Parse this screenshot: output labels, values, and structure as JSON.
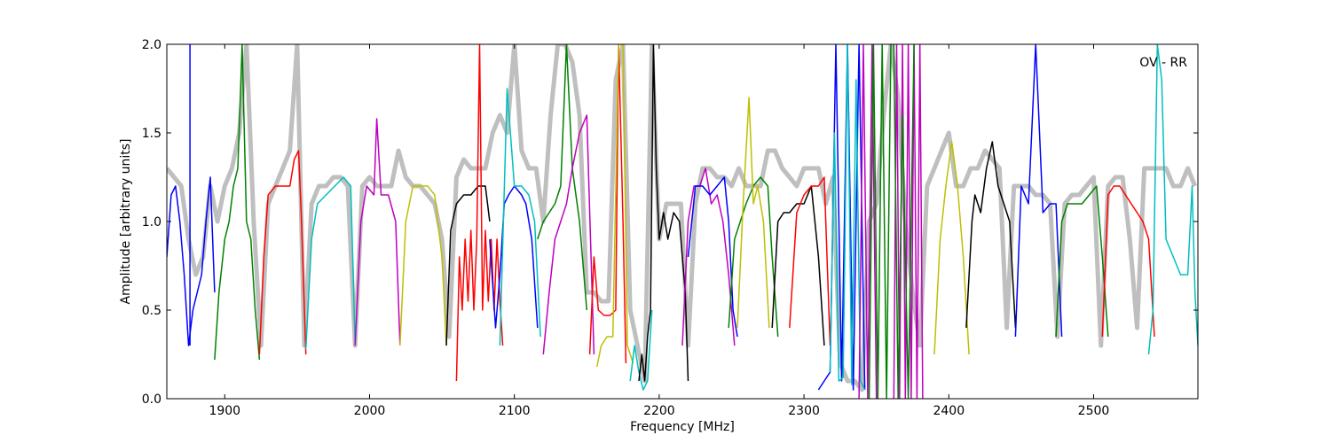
{
  "chart_data": {
    "type": "line",
    "annotation": "OV - RR",
    "xlabel": "Frequency [MHz]",
    "ylabel": "Amplitude [arbitrary units]",
    "xlim": [
      1860,
      2572
    ],
    "ylim": [
      0,
      2.0
    ],
    "xticks": [
      1900,
      2000,
      2100,
      2200,
      2300,
      2400,
      2500
    ],
    "yticks": [
      0.0,
      0.5,
      1.0,
      1.5,
      2.0
    ],
    "xtick_labels": [
      "1900",
      "2000",
      "2100",
      "2200",
      "2300",
      "2400",
      "2500"
    ],
    "ytick_labels": [
      "0.0",
      "0.5",
      "1.0",
      "1.5",
      "2.0"
    ],
    "grid": false,
    "reference_color": "#bfbfbf",
    "reference": {
      "x": [
        1860,
        1865,
        1870,
        1875,
        1880,
        1885,
        1890,
        1895,
        1900,
        1905,
        1910,
        1915,
        1920,
        1925,
        1930,
        1935,
        1940,
        1945,
        1950,
        1955,
        1960,
        1965,
        1970,
        1975,
        1980,
        1985,
        1990,
        1995,
        2000,
        2005,
        2010,
        2015,
        2020,
        2025,
        2030,
        2035,
        2040,
        2045,
        2050,
        2055,
        2060,
        2065,
        2070,
        2075,
        2080,
        2085,
        2090,
        2095,
        2100,
        2105,
        2110,
        2115,
        2120,
        2125,
        2130,
        2135,
        2140,
        2145,
        2150,
        2155,
        2160,
        2165,
        2170,
        2175,
        2180,
        2185,
        2190,
        2195,
        2200,
        2205,
        2210,
        2215,
        2220,
        2225,
        2230,
        2235,
        2240,
        2245,
        2250,
        2255,
        2260,
        2265,
        2270,
        2275,
        2280,
        2285,
        2290,
        2295,
        2300,
        2305,
        2310,
        2315,
        2320,
        2325,
        2330,
        2335,
        2340,
        2345,
        2350,
        2355,
        2360,
        2365,
        2370,
        2375,
        2380,
        2385,
        2390,
        2395,
        2400,
        2405,
        2410,
        2415,
        2420,
        2425,
        2430,
        2435,
        2440,
        2445,
        2450,
        2455,
        2460,
        2465,
        2470,
        2475,
        2480,
        2485,
        2490,
        2495,
        2500,
        2505,
        2510,
        2515,
        2520,
        2525,
        2530,
        2535,
        2540,
        2545,
        2550,
        2555,
        2560,
        2565,
        2570
      ],
      "y": [
        1.3,
        1.25,
        1.2,
        0.9,
        0.7,
        0.8,
        1.2,
        1.0,
        1.2,
        1.3,
        1.5,
        2.0,
        1.0,
        0.3,
        1.1,
        1.2,
        1.3,
        1.4,
        2.0,
        0.3,
        1.1,
        1.2,
        1.2,
        1.25,
        1.25,
        1.2,
        0.3,
        1.2,
        1.25,
        1.2,
        1.2,
        1.2,
        1.4,
        1.25,
        1.2,
        1.2,
        1.15,
        1.1,
        0.9,
        0.35,
        1.25,
        1.35,
        1.3,
        1.3,
        1.3,
        1.5,
        1.6,
        1.5,
        2.0,
        1.4,
        1.3,
        1.3,
        1.0,
        1.6,
        2.0,
        2.0,
        1.9,
        1.6,
        0.6,
        0.6,
        0.55,
        0.55,
        1.8,
        2.0,
        0.5,
        0.3,
        0.1,
        2.0,
        0.9,
        1.1,
        1.1,
        1.1,
        0.3,
        1.1,
        1.3,
        1.3,
        1.25,
        1.25,
        1.2,
        1.3,
        1.2,
        1.2,
        1.2,
        1.4,
        1.4,
        1.3,
        1.25,
        1.2,
        1.3,
        1.3,
        1.3,
        1.1,
        1.25,
        0.2,
        0.1,
        0.1,
        0.05,
        1.0,
        1.1,
        1.6,
        2.0,
        1.7,
        1.0,
        0.6,
        0.3,
        1.2,
        1.3,
        1.4,
        1.5,
        1.2,
        1.2,
        1.3,
        1.3,
        1.4,
        1.35,
        1.3,
        0.4,
        1.2,
        1.2,
        1.2,
        1.15,
        1.15,
        1.1,
        0.35,
        1.1,
        1.15,
        1.15,
        1.2,
        1.25,
        0.3,
        1.2,
        1.25,
        1.25,
        0.9,
        0.4,
        1.3,
        1.3,
        1.3,
        1.3,
        1.2,
        1.2,
        1.3,
        1.2
      ]
    },
    "series": [
      {
        "color": "#0000ff",
        "x": [
          1860,
          1863,
          1866,
          1869,
          1872,
          1875,
          1878,
          1881,
          1884,
          1887,
          1890,
          1893
        ],
        "y": [
          0.8,
          1.15,
          1.2,
          1.0,
          0.7,
          0.3,
          0.5,
          0.6,
          0.7,
          1.0,
          1.25,
          0.6
        ]
      },
      {
        "color": "#0000ff",
        "x": [
          1876,
          1876,
          1876
        ],
        "y": [
          0.3,
          2.0,
          0.3
        ]
      },
      {
        "color": "#008000",
        "x": [
          1893,
          1896,
          1900,
          1903,
          1906,
          1909,
          1912,
          1915,
          1918,
          1921,
          1924
        ],
        "y": [
          0.22,
          0.6,
          0.9,
          1.0,
          1.2,
          1.3,
          2.0,
          1.0,
          0.9,
          0.5,
          0.22
        ]
      },
      {
        "color": "#ff0000",
        "x": [
          1924,
          1927,
          1930,
          1935,
          1940,
          1945,
          1948,
          1951,
          1953,
          1956
        ],
        "y": [
          0.25,
          0.8,
          1.15,
          1.2,
          1.2,
          1.2,
          1.35,
          1.4,
          1.0,
          0.25
        ]
      },
      {
        "color": "#00bfbf",
        "x": [
          1956,
          1960,
          1964,
          1970,
          1976,
          1982,
          1987,
          1990
        ],
        "y": [
          0.28,
          0.9,
          1.1,
          1.15,
          1.2,
          1.25,
          1.2,
          0.3
        ]
      },
      {
        "color": "#bf00bf",
        "x": [
          1990,
          1994,
          1998,
          2003,
          2005,
          2008,
          2013,
          2018,
          2021
        ],
        "y": [
          0.3,
          1.0,
          1.2,
          1.15,
          1.58,
          1.15,
          1.15,
          1.0,
          0.3
        ]
      },
      {
        "color": "#bfbf00",
        "x": [
          2021,
          2025,
          2030,
          2035,
          2040,
          2045,
          2050,
          2053
        ],
        "y": [
          0.3,
          1.0,
          1.2,
          1.2,
          1.2,
          1.15,
          0.8,
          0.3
        ]
      },
      {
        "color": "#000000",
        "x": [
          2053,
          2056,
          2060,
          2065,
          2070,
          2075,
          2080,
          2083
        ],
        "y": [
          0.3,
          0.95,
          1.1,
          1.15,
          1.15,
          1.2,
          1.2,
          1.0
        ]
      },
      {
        "color": "#ff0000",
        "x": [
          2060,
          2062,
          2064,
          2066,
          2068,
          2070,
          2072,
          2074,
          2076,
          2078,
          2080,
          2082,
          2084,
          2086,
          2088,
          2090,
          2092
        ],
        "y": [
          0.1,
          0.8,
          0.5,
          0.9,
          0.55,
          0.95,
          0.5,
          0.9,
          2.0,
          0.5,
          0.95,
          0.55,
          0.9,
          0.5,
          0.9,
          0.55,
          0.3
        ]
      },
      {
        "color": "#0000ff",
        "x": [
          2083,
          2087,
          2090,
          2093,
          2096,
          2100,
          2105,
          2108,
          2112,
          2116
        ],
        "y": [
          0.9,
          0.4,
          0.7,
          1.1,
          1.15,
          1.2,
          1.15,
          1.1,
          0.9,
          0.4
        ]
      },
      {
        "color": "#00bfbf",
        "x": [
          2090,
          2095,
          2100,
          2105,
          2110,
          2114,
          2118
        ],
        "y": [
          0.3,
          1.75,
          1.2,
          1.2,
          1.15,
          1.0,
          0.35
        ]
      },
      {
        "color": "#008000",
        "x": [
          2116,
          2120,
          2124,
          2128,
          2132,
          2136,
          2140,
          2145,
          2150
        ],
        "y": [
          0.9,
          1.0,
          1.05,
          1.1,
          1.2,
          2.0,
          1.3,
          1.0,
          0.5
        ]
      },
      {
        "color": "#bf00bf",
        "x": [
          2120,
          2124,
          2128,
          2132,
          2136,
          2140,
          2145,
          2150,
          2155
        ],
        "y": [
          0.25,
          0.6,
          0.9,
          1.0,
          1.1,
          1.3,
          1.5,
          1.6,
          0.25
        ]
      },
      {
        "color": "#ff0000",
        "x": [
          2152,
          2155,
          2158,
          2162,
          2166,
          2170,
          2172,
          2175,
          2177
        ],
        "y": [
          0.25,
          0.8,
          0.5,
          0.47,
          0.47,
          0.5,
          2.0,
          1.0,
          0.2
        ]
      },
      {
        "color": "#bfbf00",
        "x": [
          2157,
          2160,
          2164,
          2168,
          2172,
          2175,
          2178,
          2182
        ],
        "y": [
          0.18,
          0.3,
          0.35,
          0.35,
          2.0,
          2.0,
          0.3,
          0.2
        ]
      },
      {
        "color": "#00bfbf",
        "x": [
          2180,
          2183,
          2186,
          2189,
          2192,
          2195
        ],
        "y": [
          0.1,
          0.3,
          0.15,
          0.05,
          0.1,
          0.5
        ]
      },
      {
        "color": "#000000",
        "x": [
          2186,
          2188,
          2190,
          2192,
          2194,
          2196,
          2198,
          2200,
          2203,
          2206,
          2210,
          2214,
          2218,
          2220
        ],
        "y": [
          0.1,
          0.25,
          0.1,
          0.35,
          0.5,
          2.0,
          1.3,
          0.9,
          1.05,
          0.9,
          1.05,
          1.0,
          0.6,
          0.1
        ]
      },
      {
        "color": "#bf00bf",
        "x": [
          2216,
          2220,
          2224,
          2228,
          2232,
          2236,
          2240,
          2244,
          2248,
          2252
        ],
        "y": [
          0.3,
          1.0,
          1.2,
          1.2,
          1.3,
          1.1,
          1.15,
          1.0,
          0.7,
          0.3
        ]
      },
      {
        "color": "#0000ff",
        "x": [
          2220,
          2225,
          2230,
          2235,
          2240,
          2245,
          2248,
          2251,
          2254
        ],
        "y": [
          0.8,
          1.2,
          1.2,
          1.15,
          1.2,
          1.25,
          1.0,
          0.5,
          0.35
        ]
      },
      {
        "color": "#008000",
        "x": [
          2248,
          2252,
          2256,
          2260,
          2265,
          2270,
          2275,
          2278,
          2282
        ],
        "y": [
          0.4,
          0.9,
          1.0,
          1.1,
          1.2,
          1.25,
          1.2,
          0.8,
          0.35
        ]
      },
      {
        "color": "#bfbf00",
        "x": [
          2254,
          2258,
          2262,
          2265,
          2268,
          2272,
          2276
        ],
        "y": [
          0.4,
          1.1,
          1.7,
          1.1,
          1.2,
          1.0,
          0.4
        ]
      },
      {
        "color": "#000000",
        "x": [
          2278,
          2282,
          2286,
          2290,
          2295,
          2300,
          2305,
          2310,
          2314
        ],
        "y": [
          0.4,
          1.0,
          1.05,
          1.05,
          1.1,
          1.1,
          1.2,
          0.8,
          0.3
        ]
      },
      {
        "color": "#ff0000",
        "x": [
          2290,
          2295,
          2300,
          2305,
          2310,
          2314,
          2318
        ],
        "y": [
          0.4,
          1.05,
          1.15,
          1.2,
          1.2,
          1.25,
          0.3
        ]
      },
      {
        "color": "#0000ff",
        "x": [
          2310,
          2314,
          2318,
          2322,
          2326,
          2330,
          2334,
          2338,
          2342
        ],
        "y": [
          0.05,
          0.1,
          0.15,
          2.0,
          0.1,
          2.0,
          0.05,
          2.0,
          0.05
        ]
      },
      {
        "color": "#00bfbf",
        "x": [
          2318,
          2321,
          2324,
          2327,
          2330,
          2333,
          2336,
          2339,
          2342
        ],
        "y": [
          0.15,
          1.5,
          0.1,
          0.12,
          2.0,
          0.08,
          1.8,
          0.1,
          0.05
        ]
      },
      {
        "color": "#bf00bf",
        "x": [
          2338,
          2341,
          2344,
          2347,
          2350
        ],
        "y": [
          0.0,
          2.0,
          0.0,
          2.0,
          0.0
        ]
      },
      {
        "color": "#008000",
        "x": [
          2345,
          2348,
          2351,
          2354,
          2357,
          2360
        ],
        "y": [
          0.0,
          2.0,
          0.0,
          2.0,
          0.0,
          2.0
        ]
      },
      {
        "color": "#bf00bf",
        "x": [
          2362,
          2364,
          2366,
          2368,
          2370,
          2372,
          2374,
          2376,
          2378,
          2380,
          2382
        ],
        "y": [
          0.0,
          2.0,
          0.0,
          2.0,
          0.0,
          2.0,
          0.0,
          2.0,
          0.0,
          2.0,
          0.0
        ]
      },
      {
        "color": "#008000",
        "x": [
          2362,
          2365,
          2368,
          2372,
          2376
        ],
        "y": [
          2.0,
          0.0,
          1.6,
          0.0,
          2.0
        ]
      },
      {
        "color": "#bfbf00",
        "x": [
          2390,
          2394,
          2398,
          2402,
          2406,
          2410,
          2414
        ],
        "y": [
          0.25,
          0.9,
          1.2,
          1.45,
          1.2,
          0.8,
          0.25
        ]
      },
      {
        "color": "#000000",
        "x": [
          2412,
          2416,
          2418,
          2422,
          2426,
          2430,
          2434,
          2438,
          2442,
          2446
        ],
        "y": [
          0.4,
          1.0,
          1.15,
          1.05,
          1.3,
          1.45,
          1.2,
          1.1,
          1.0,
          0.4
        ]
      },
      {
        "color": "#0000ff",
        "x": [
          2446,
          2450,
          2455,
          2460,
          2465,
          2470,
          2474,
          2478
        ],
        "y": [
          0.35,
          1.2,
          1.1,
          2.0,
          1.05,
          1.1,
          1.1,
          0.35
        ]
      },
      {
        "color": "#008000",
        "x": [
          2474,
          2478,
          2482,
          2487,
          2492,
          2497,
          2502,
          2506,
          2510
        ],
        "y": [
          0.35,
          1.0,
          1.1,
          1.1,
          1.1,
          1.15,
          1.2,
          0.8,
          0.35
        ]
      },
      {
        "color": "#ff0000",
        "x": [
          2506,
          2510,
          2514,
          2518,
          2522,
          2526,
          2530,
          2534,
          2538,
          2542
        ],
        "y": [
          0.35,
          1.15,
          1.2,
          1.2,
          1.15,
          1.1,
          1.05,
          1.0,
          0.9,
          0.35
        ]
      },
      {
        "color": "#00bfbf",
        "x": [
          2538,
          2541,
          2544,
          2547,
          2550,
          2555,
          2560,
          2565,
          2568,
          2570,
          2572
        ],
        "y": [
          0.25,
          0.5,
          2.0,
          1.8,
          0.9,
          0.8,
          0.7,
          0.7,
          1.2,
          0.6,
          0.3
        ]
      }
    ]
  }
}
